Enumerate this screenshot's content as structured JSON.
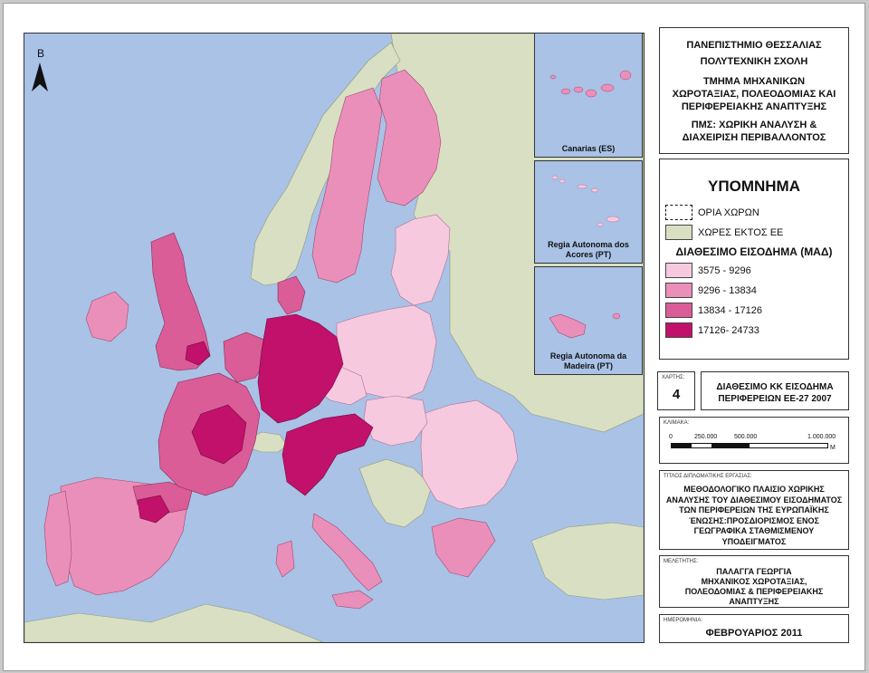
{
  "map": {
    "north_letter": "B",
    "colors": {
      "sea": "#a9c2e6",
      "non_eu": "#d9dfc2",
      "class1": "#f6c9df",
      "class2": "#ea8fb9",
      "class3": "#da5d97",
      "class4": "#c2116b"
    },
    "insets": [
      {
        "label": "Canarias (ES)"
      },
      {
        "label": "Regia Autonoma dos Acores (PT)"
      },
      {
        "label": "Regia Autonoma da Madeira (PT)"
      }
    ]
  },
  "header": {
    "line1": "ΠΑΝΕΠΙΣΤΗΜΙΟ ΘΕΣΣΑΛΙΑΣ",
    "line2": "ΠΟΛΥΤΕΧΝΙΚΗ ΣΧΟΛΗ",
    "line3": "ΤΜΗΜΑ ΜΗΧΑΝΙΚΩΝ",
    "line4": "ΧΩΡΟΤΑΞΙΑΣ, ΠΟΛΕΟΔΟΜΙΑΣ ΚΑΙ",
    "line5": "ΠΕΡΙΦΕΡΕΙΑΚΗΣ ΑΝΑΠΤΥΞΗΣ",
    "line6": "ΠΜΣ: ΧΩΡΙΚΗ ΑΝΑΛΥΣΗ &",
    "line7": "ΔΙΑΧΕΙΡΙΣΗ ΠΕΡΙΒΑΛΛΟΝΤΟΣ"
  },
  "legend": {
    "title": "ΥΠΟΜΝΗΜΑ",
    "borders_label": "ΟΡΙΑ ΧΩΡΩΝ",
    "non_eu_label": "ΧΩΡΕΣ ΕΚΤΟΣ ΕΕ",
    "income_title": "ΔΙΑΘΕΣΙΜΟ  ΕΙΣΟΔΗΜΑ (ΜΑΔ)",
    "classes": [
      {
        "label": "3575 - 9296",
        "color": "#f6c9df"
      },
      {
        "label": "9296 - 13834",
        "color": "#ea8fb9"
      },
      {
        "label": "13834 - 17126",
        "color": "#da5d97"
      },
      {
        "label": "17126- 24733",
        "color": "#c2116b"
      }
    ]
  },
  "map_number": {
    "caption": "ΧΑΡΤΗΣ:",
    "value": "4",
    "title_line1": "ΔΙΑΘΕΣΙΜΟ ΚΚ ΕΙΣΟΔΗΜΑ",
    "title_line2": "ΠΕΡΙΦΕΡΕΙΩΝ ΕΕ-27 2007"
  },
  "scale": {
    "caption": "ΚΛΙΜΑΚΑ:",
    "ticks": [
      "0",
      "250.000",
      "500.000",
      "1.000.000"
    ],
    "unit": "M"
  },
  "thesis": {
    "caption": "ΤΙΤΛΟΣ ΔΙΠΛΩΜΑΤΙΚΗΣ ΕΡΓΑΣΙΑΣ:",
    "lines": [
      "ΜΕΘΟΔΟΛΟΓΙΚΟ ΠΛΑΙΣΙΟ ΧΩΡΙΚΗΣ",
      "ΑΝΑΛΥΣΗΣ ΤΟΥ ΔΙΑΘΕΣΙΜΟΥ ΕΙΣΟΔΗΜΑΤΟΣ",
      "ΤΩΝ ΠΕΡΙΦΕΡΕΙΩΝ ΤΗΣ ΕΥΡΩΠΑΪΚΗΣ",
      "ΈΝΩΣΗΣ:ΠΡΟΣΔΙΟΡΙΣΜΟΣ ΕΝΟΣ",
      "ΓΕΩΓΡΑΦΙΚΑ ΣΤΑΘΜΙΣΜΕΝΟΥ",
      "ΥΠΟΔΕΙΓΜΑΤΟΣ"
    ]
  },
  "author": {
    "caption": "ΜΕΛΕΤΗΤΗΣ:",
    "lines": [
      "ΠΑΛΑΓΓΑ ΓΕΩΡΓΙΑ",
      "ΜΗΧΑΝΙΚΟΣ ΧΩΡΟΤΑΞΙΑΣ,",
      "ΠΟΛΕΟΔΟΜΙΑΣ & ΠΕΡΙΦΕΡΕΙΑΚΗΣ",
      "ΑΝΑΠΤΥΞΗΣ"
    ]
  },
  "date": {
    "caption": "ΗΜΕΡΟΜΗΝΙΑ:",
    "value": "ΦΕΒΡΟΥΑΡΙΟΣ 2011"
  }
}
